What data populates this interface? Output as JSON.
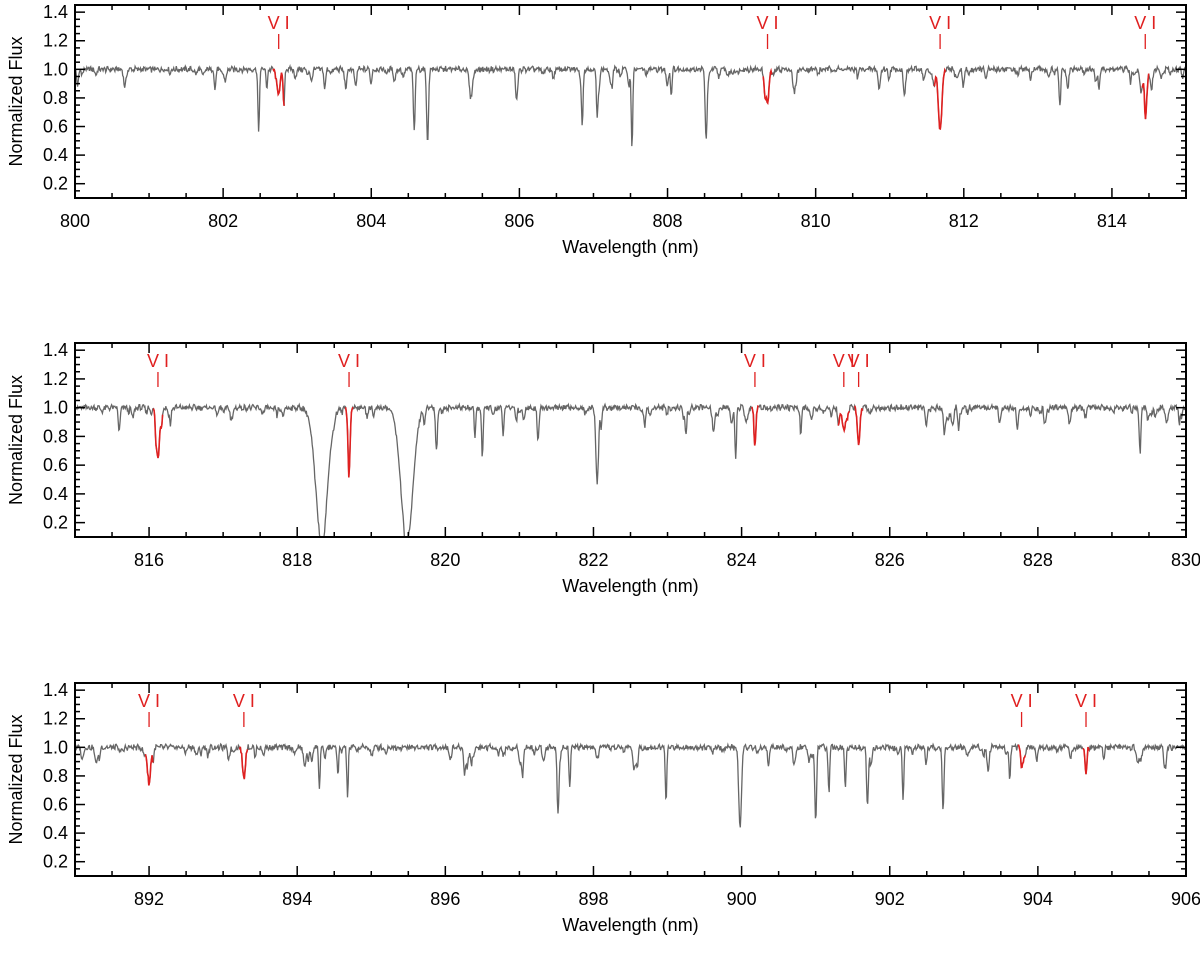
{
  "chart_data": [
    {
      "type": "line",
      "xlabel": "Wavelength (nm)",
      "ylabel": "Normalized Flux",
      "xlim": [
        800,
        815
      ],
      "ylim": [
        0.1,
        1.45
      ],
      "xticks": [
        800,
        802,
        804,
        806,
        808,
        810,
        812,
        814
      ],
      "yticks": [
        0.2,
        0.4,
        0.6,
        0.8,
        1.0,
        1.2,
        1.4
      ],
      "colors": {
        "spectrum": "#666666",
        "highlight": "#e02020"
      },
      "spectrum_lines": [
        {
          "x": 802.48,
          "depth": 0.46,
          "w": 0.01
        },
        {
          "x": 802.82,
          "depth": 0.25,
          "w": 0.01
        },
        {
          "x": 804.58,
          "depth": 0.44,
          "w": 0.012
        },
        {
          "x": 804.76,
          "depth": 0.54,
          "w": 0.012
        },
        {
          "x": 806.85,
          "depth": 0.36,
          "w": 0.01
        },
        {
          "x": 807.05,
          "depth": 0.3,
          "w": 0.01
        },
        {
          "x": 807.52,
          "depth": 0.48,
          "w": 0.01
        },
        {
          "x": 808.05,
          "depth": 0.18,
          "w": 0.01
        },
        {
          "x": 808.52,
          "depth": 0.44,
          "w": 0.012
        },
        {
          "x": 807.25,
          "depth": 0.12,
          "w": 0.01
        },
        {
          "x": 813.3,
          "depth": 0.26,
          "w": 0.01
        },
        {
          "x": 812.9,
          "depth": 0.1,
          "w": 0.01
        }
      ],
      "v_lines": [
        {
          "label": "V I",
          "x": 802.75,
          "depth": 0.14,
          "w": 0.025
        },
        {
          "label": "V I",
          "x": 809.35,
          "depth": 0.23,
          "w": 0.02
        },
        {
          "label": "V I",
          "x": 811.68,
          "depth": 0.42,
          "w": 0.025
        },
        {
          "label": "V I",
          "x": 814.45,
          "depth": 0.28,
          "w": 0.012
        }
      ]
    },
    {
      "type": "line",
      "xlabel": "Wavelength (nm)",
      "ylabel": "Normalized Flux",
      "xlim": [
        815,
        830
      ],
      "ylim": [
        0.1,
        1.45
      ],
      "xticks": [
        816,
        818,
        820,
        822,
        824,
        826,
        828,
        830
      ],
      "yticks": [
        0.2,
        0.4,
        0.6,
        0.8,
        1.0,
        1.2,
        1.4
      ],
      "colors": {
        "spectrum": "#666666",
        "highlight": "#e02020"
      },
      "spectrum_lines": [
        {
          "x": 818.33,
          "depth": 0.93,
          "w": 0.08
        },
        {
          "x": 819.48,
          "depth": 0.93,
          "w": 0.08
        },
        {
          "x": 819.88,
          "depth": 0.3,
          "w": 0.012
        },
        {
          "x": 820.4,
          "depth": 0.18,
          "w": 0.01
        },
        {
          "x": 820.5,
          "depth": 0.36,
          "w": 0.01
        },
        {
          "x": 820.78,
          "depth": 0.2,
          "w": 0.01
        },
        {
          "x": 821.25,
          "depth": 0.2,
          "w": 0.012
        },
        {
          "x": 822.05,
          "depth": 0.52,
          "w": 0.018
        },
        {
          "x": 823.25,
          "depth": 0.2,
          "w": 0.01
        },
        {
          "x": 823.92,
          "depth": 0.37,
          "w": 0.01
        },
        {
          "x": 824.8,
          "depth": 0.2,
          "w": 0.01
        },
        {
          "x": 829.38,
          "depth": 0.33,
          "w": 0.01
        }
      ],
      "v_lines": [
        {
          "label": "V I",
          "x": 816.12,
          "depth": 0.35,
          "w": 0.02
        },
        {
          "label": "V I",
          "x": 818.7,
          "depth": 0.34,
          "w": 0.015
        },
        {
          "label": "V I",
          "x": 824.18,
          "depth": 0.28,
          "w": 0.012
        },
        {
          "label": "V I",
          "x": 825.38,
          "depth": 0.14,
          "w": 0.025
        },
        {
          "label": "V I",
          "x": 825.58,
          "depth": 0.25,
          "w": 0.018
        }
      ]
    },
    {
      "type": "line",
      "xlabel": "Wavelength (nm)",
      "ylabel": "Normalized Flux",
      "xlim": [
        891,
        906
      ],
      "ylim": [
        0.1,
        1.45
      ],
      "xticks": [
        892,
        894,
        896,
        898,
        900,
        902,
        904,
        906
      ],
      "yticks": [
        0.2,
        0.4,
        0.6,
        0.8,
        1.0,
        1.2,
        1.4
      ],
      "colors": {
        "spectrum": "#666666",
        "highlight": "#e02020"
      },
      "spectrum_lines": [
        {
          "x": 894.3,
          "depth": 0.28,
          "w": 0.01
        },
        {
          "x": 894.68,
          "depth": 0.35,
          "w": 0.01
        },
        {
          "x": 894.55,
          "depth": 0.2,
          "w": 0.01
        },
        {
          "x": 897.52,
          "depth": 0.42,
          "w": 0.012
        },
        {
          "x": 897.68,
          "depth": 0.28,
          "w": 0.01
        },
        {
          "x": 898.98,
          "depth": 0.38,
          "w": 0.01
        },
        {
          "x": 899.98,
          "depth": 0.57,
          "w": 0.018
        },
        {
          "x": 901.0,
          "depth": 0.51,
          "w": 0.012
        },
        {
          "x": 901.18,
          "depth": 0.3,
          "w": 0.01
        },
        {
          "x": 901.4,
          "depth": 0.28,
          "w": 0.01
        },
        {
          "x": 901.7,
          "depth": 0.42,
          "w": 0.012
        },
        {
          "x": 902.18,
          "depth": 0.38,
          "w": 0.01
        },
        {
          "x": 902.72,
          "depth": 0.45,
          "w": 0.012
        },
        {
          "x": 903.62,
          "depth": 0.24,
          "w": 0.01
        }
      ],
      "v_lines": [
        {
          "label": "V I",
          "x": 892.0,
          "depth": 0.25,
          "w": 0.02
        },
        {
          "label": "V I",
          "x": 893.28,
          "depth": 0.22,
          "w": 0.018
        },
        {
          "label": "V I",
          "x": 903.78,
          "depth": 0.14,
          "w": 0.012
        },
        {
          "label": "V I",
          "x": 904.65,
          "depth": 0.18,
          "w": 0.012
        }
      ]
    }
  ]
}
